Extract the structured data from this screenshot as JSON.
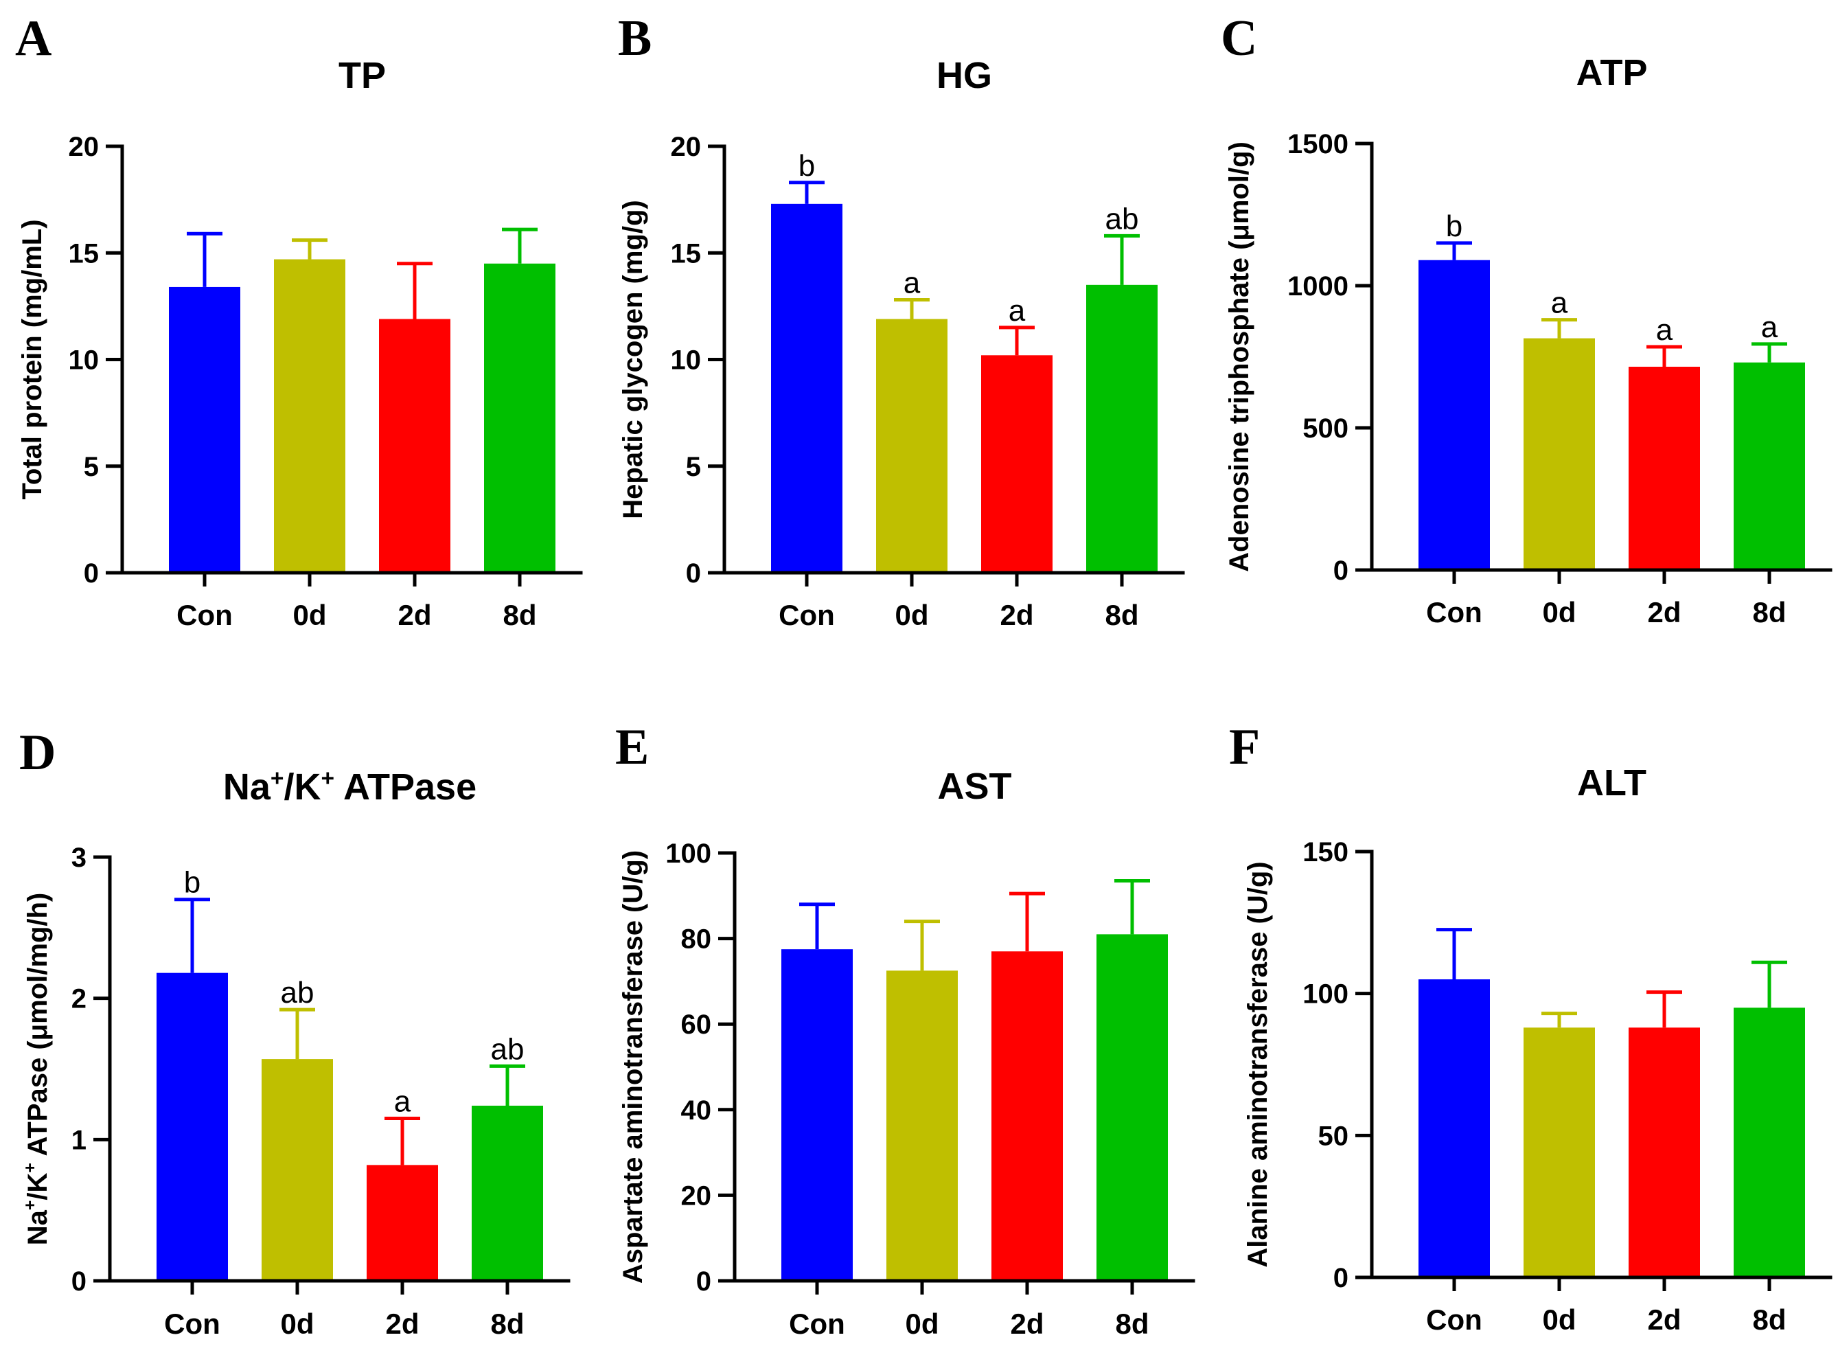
{
  "chart_data": [
    {
      "panel": "A",
      "type": "bar",
      "title": "TP",
      "ylabel": "Total protein (mg/mL)",
      "categories": [
        "Con",
        "0d",
        "2d",
        "8d"
      ],
      "values": [
        13.4,
        14.7,
        11.9,
        14.5
      ],
      "errors": [
        2.5,
        0.9,
        2.6,
        1.6
      ],
      "significance": [
        "",
        "",
        "",
        ""
      ],
      "ylim": [
        0,
        20
      ],
      "yticks": [
        0,
        5,
        10,
        15,
        20
      ],
      "colors": [
        "#0000ff",
        "#bfbf00",
        "#ff0000",
        "#00bf00"
      ]
    },
    {
      "panel": "B",
      "type": "bar",
      "title": "HG",
      "ylabel": "Hepatic glycogen (mg/g)",
      "categories": [
        "Con",
        "0d",
        "2d",
        "8d"
      ],
      "values": [
        17.3,
        11.9,
        10.2,
        13.5
      ],
      "errors": [
        1.0,
        0.9,
        1.3,
        2.3
      ],
      "significance": [
        "b",
        "a",
        "a",
        "ab"
      ],
      "ylim": [
        0,
        20
      ],
      "yticks": [
        0,
        5,
        10,
        15,
        20
      ],
      "colors": [
        "#0000ff",
        "#bfbf00",
        "#ff0000",
        "#00bf00"
      ]
    },
    {
      "panel": "C",
      "type": "bar",
      "title": "ATP",
      "ylabel": "Adenosine triphosphate (μmol/g)",
      "categories": [
        "Con",
        "0d",
        "2d",
        "8d"
      ],
      "values": [
        1090,
        815,
        715,
        730
      ],
      "errors": [
        60,
        65,
        70,
        65
      ],
      "significance": [
        "b",
        "a",
        "a",
        "a"
      ],
      "ylim": [
        0,
        1500
      ],
      "yticks": [
        0,
        500,
        1000,
        1500
      ],
      "colors": [
        "#0000ff",
        "#bfbf00",
        "#ff0000",
        "#00bf00"
      ]
    },
    {
      "panel": "D",
      "type": "bar",
      "title_parts": [
        "Na",
        "+",
        "/K",
        "+",
        " ATPase"
      ],
      "ylabel_parts": [
        "Na",
        "+",
        "/K",
        "+",
        " ATPase (μmol/mg/h)"
      ],
      "categories": [
        "Con",
        "0d",
        "2d",
        "8d"
      ],
      "values": [
        2.18,
        1.57,
        0.82,
        1.24
      ],
      "errors": [
        0.52,
        0.35,
        0.33,
        0.28
      ],
      "significance": [
        "b",
        "ab",
        "a",
        "ab"
      ],
      "ylim": [
        0,
        3
      ],
      "yticks": [
        0,
        1,
        2,
        3
      ],
      "colors": [
        "#0000ff",
        "#bfbf00",
        "#ff0000",
        "#00bf00"
      ]
    },
    {
      "panel": "E",
      "type": "bar",
      "title": "AST",
      "ylabel": "Aspartate aminotransferase (U/g)",
      "categories": [
        "Con",
        "0d",
        "2d",
        "8d"
      ],
      "values": [
        77.5,
        72.5,
        77,
        81
      ],
      "errors": [
        10.5,
        11.5,
        13.5,
        12.5
      ],
      "significance": [
        "",
        "",
        "",
        ""
      ],
      "ylim": [
        0,
        100
      ],
      "yticks": [
        0,
        20,
        40,
        60,
        80,
        100
      ],
      "colors": [
        "#0000ff",
        "#bfbf00",
        "#ff0000",
        "#00bf00"
      ]
    },
    {
      "panel": "F",
      "type": "bar",
      "title": "ALT",
      "ylabel": "Alanine aminotransferase (U/g)",
      "categories": [
        "Con",
        "0d",
        "2d",
        "8d"
      ],
      "values": [
        105,
        88,
        88,
        95
      ],
      "errors": [
        17.5,
        5,
        12.5,
        16
      ],
      "significance": [
        "",
        "",
        "",
        ""
      ],
      "ylim": [
        0,
        150
      ],
      "yticks": [
        0,
        50,
        100,
        150
      ],
      "colors": [
        "#0000ff",
        "#bfbf00",
        "#ff0000",
        "#00bf00"
      ]
    }
  ]
}
